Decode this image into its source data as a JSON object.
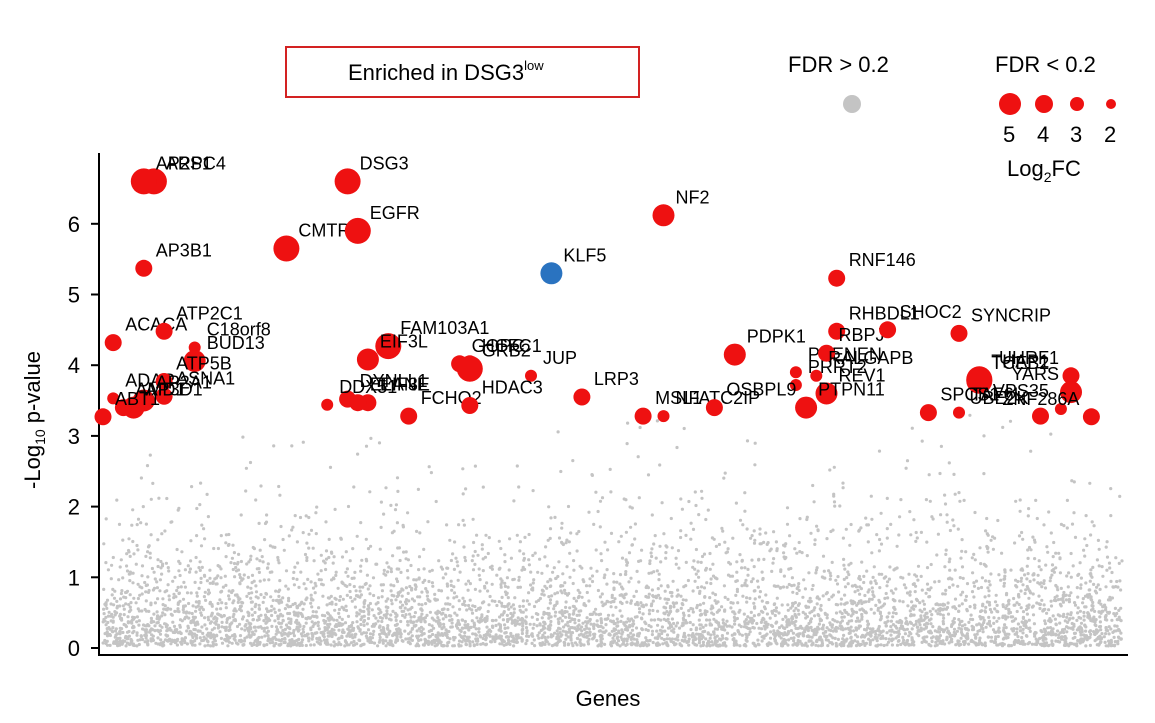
{
  "chart_data": {
    "type": "scatter",
    "title_box": {
      "text": "Enriched in DSG3",
      "superscript": "low"
    },
    "xlabel": "Genes",
    "ylabel": "-Log",
    "ylabel_sub": "10",
    "ylabel_suffix": " p-value",
    "ylim": [
      0,
      7
    ],
    "yticks": [
      0,
      1,
      2,
      3,
      4,
      5,
      6
    ],
    "grid": false,
    "colors": {
      "significant": "#ee1111",
      "highlight": "#2a73c0",
      "background": "#c4c4c4"
    },
    "legend": {
      "fdr_high_label": "FDR > 0.2",
      "fdr_low_label": "FDR < 0.2",
      "size_values": [
        "5",
        "4",
        "3",
        "2"
      ],
      "size_title": "Log",
      "size_title_sub": "2",
      "size_title_suffix": "FC"
    },
    "background_points_note": "",
    "points": [
      {
        "gene": "ARPC4",
        "x": 0.05,
        "y": 6.6,
        "fc": 5
      },
      {
        "gene": "AP2S1",
        "x": 0.04,
        "y": 6.6,
        "fc": 5
      },
      {
        "gene": "AP3B1",
        "x": 0.04,
        "y": 5.37,
        "fc": 3
      },
      {
        "gene": "CMTR1",
        "x": 0.18,
        "y": 5.65,
        "fc": 5
      },
      {
        "gene": "DSG3",
        "x": 0.24,
        "y": 6.6,
        "fc": 5
      },
      {
        "gene": "EGFR",
        "x": 0.25,
        "y": 5.9,
        "fc": 5
      },
      {
        "gene": "KLF5",
        "x": 0.44,
        "y": 5.3,
        "fc": 4,
        "highlight": true
      },
      {
        "gene": "NF2",
        "x": 0.55,
        "y": 6.12,
        "fc": 4
      },
      {
        "gene": "RNF146",
        "x": 0.72,
        "y": 5.23,
        "fc": 3
      },
      {
        "gene": "ACACA",
        "x": 0.01,
        "y": 4.32,
        "fc": 3
      },
      {
        "gene": "ATP2C1",
        "x": 0.06,
        "y": 4.48,
        "fc": 3
      },
      {
        "gene": "C18orf8",
        "x": 0.09,
        "y": 4.25,
        "fc": 2
      },
      {
        "gene": "BUD13",
        "x": 0.09,
        "y": 4.06,
        "fc": 4
      },
      {
        "gene": "ADAR",
        "x": 0.01,
        "y": 3.53,
        "fc": 2
      },
      {
        "gene": "ATP5B",
        "x": 0.06,
        "y": 3.77,
        "fc": 3
      },
      {
        "gene": "ASNA1",
        "x": 0.06,
        "y": 3.56,
        "fc": 3
      },
      {
        "gene": "AP2A1",
        "x": 0.04,
        "y": 3.5,
        "fc": 4
      },
      {
        "gene": "AP3D1",
        "x": 0.03,
        "y": 3.4,
        "fc": 4
      },
      {
        "gene": "AMD1",
        "x": 0.02,
        "y": 3.4,
        "fc": 3
      },
      {
        "gene": "ABT1",
        "x": 0.0,
        "y": 3.27,
        "fc": 3
      },
      {
        "gene": "FAM103A1",
        "x": 0.28,
        "y": 4.27,
        "fc": 5
      },
      {
        "gene": "EIF3L",
        "x": 0.26,
        "y": 4.08,
        "fc": 4
      },
      {
        "gene": "GOPC",
        "x": 0.35,
        "y": 4.02,
        "fc": 3
      },
      {
        "gene": "HCFC1",
        "x": 0.36,
        "y": 4.02,
        "fc": 3
      },
      {
        "gene": "JUP",
        "x": 0.42,
        "y": 3.85,
        "fc": 2
      },
      {
        "gene": "DYNLL1",
        "x": 0.24,
        "y": 3.52,
        "fc": 3
      },
      {
        "gene": "EIF3E",
        "x": 0.26,
        "y": 3.47,
        "fc": 3
      },
      {
        "gene": "DDX51",
        "x": 0.22,
        "y": 3.44,
        "fc": 2
      },
      {
        "gene": "GRB2",
        "x": 0.36,
        "y": 3.95,
        "fc": 5
      },
      {
        "gene": "ELANE",
        "x": 0.25,
        "y": 3.47,
        "fc": 3
      },
      {
        "gene": "FCHO2",
        "x": 0.3,
        "y": 3.28,
        "fc": 3
      },
      {
        "gene": "HDAC3",
        "x": 0.36,
        "y": 3.43,
        "fc": 3
      },
      {
        "gene": "LRP3",
        "x": 0.47,
        "y": 3.55,
        "fc": 3
      },
      {
        "gene": "PDPK1",
        "x": 0.62,
        "y": 4.15,
        "fc": 4
      },
      {
        "gene": "PSENEN",
        "x": 0.68,
        "y": 3.9,
        "fc": 2
      },
      {
        "gene": "NFATC2IP",
        "x": 0.55,
        "y": 3.28,
        "fc": 2
      },
      {
        "gene": "MSL1",
        "x": 0.53,
        "y": 3.28,
        "fc": 3
      },
      {
        "gene": "PRRT2",
        "x": 0.68,
        "y": 3.72,
        "fc": 2
      },
      {
        "gene": "OSBPL9",
        "x": 0.6,
        "y": 3.4,
        "fc": 3
      },
      {
        "gene": "RHBDL1",
        "x": 0.72,
        "y": 4.48,
        "fc": 3
      },
      {
        "gene": "RBPJ",
        "x": 0.71,
        "y": 4.17,
        "fc": 3
      },
      {
        "gene": "RALGAPB",
        "x": 0.7,
        "y": 3.85,
        "fc": 2
      },
      {
        "gene": "REV1",
        "x": 0.71,
        "y": 3.6,
        "fc": 4
      },
      {
        "gene": "PTPN11",
        "x": 0.69,
        "y": 3.4,
        "fc": 4
      },
      {
        "gene": "SHOC2",
        "x": 0.77,
        "y": 4.5,
        "fc": 3
      },
      {
        "gene": "SYNCRIP",
        "x": 0.84,
        "y": 4.45,
        "fc": 3
      },
      {
        "gene": "THAP1",
        "x": 0.86,
        "y": 3.8,
        "fc": 5
      },
      {
        "gene": "TCEB2",
        "x": 0.86,
        "y": 3.78,
        "fc": 5
      },
      {
        "gene": "SPCS1",
        "x": 0.81,
        "y": 3.33,
        "fc": 3
      },
      {
        "gene": "TAF6L",
        "x": 0.84,
        "y": 3.33,
        "fc": 2
      },
      {
        "gene": "UHRF1",
        "x": 0.95,
        "y": 3.85,
        "fc": 3
      },
      {
        "gene": "YARS",
        "x": 0.95,
        "y": 3.62,
        "fc": 4
      },
      {
        "gene": "VPS35",
        "x": 0.94,
        "y": 3.38,
        "fc": 2
      },
      {
        "gene": "UBE2K",
        "x": 0.92,
        "y": 3.28,
        "fc": 3
      },
      {
        "gene": "ZNF286A",
        "x": 0.97,
        "y": 3.27,
        "fc": 3
      }
    ]
  }
}
